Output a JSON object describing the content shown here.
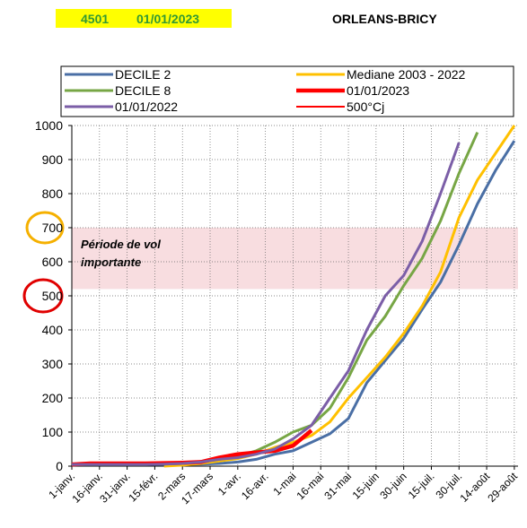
{
  "chart_data": {
    "type": "line",
    "header_code": "4501",
    "header_date": "01/01/2023",
    "header_station": "ORLEANS-BRICY",
    "annotation": [
      "Période de vol",
      "importante"
    ],
    "band": [
      520,
      700
    ],
    "band_color": "#f8dde0",
    "x": [
      0,
      10,
      20,
      30,
      40,
      50,
      60,
      70,
      80,
      90,
      100,
      110,
      120,
      130,
      140,
      150,
      160,
      170,
      180,
      190,
      200,
      210,
      220,
      230,
      240
    ],
    "xlim": [
      0,
      242
    ],
    "xticks": [
      {
        "value": 0,
        "label": "1-janv."
      },
      {
        "value": 15,
        "label": "16-janv."
      },
      {
        "value": 30,
        "label": "31-janv."
      },
      {
        "value": 45,
        "label": "15-févr."
      },
      {
        "value": 60,
        "label": "2-mars"
      },
      {
        "value": 75,
        "label": "17-mars"
      },
      {
        "value": 90,
        "label": "1-avr."
      },
      {
        "value": 105,
        "label": "16-avr."
      },
      {
        "value": 120,
        "label": "1-mai"
      },
      {
        "value": 135,
        "label": "16-mai"
      },
      {
        "value": 150,
        "label": "31-mai"
      },
      {
        "value": 165,
        "label": "15-juin"
      },
      {
        "value": 180,
        "label": "30-juin"
      },
      {
        "value": 195,
        "label": "15-juil."
      },
      {
        "value": 210,
        "label": "30-juil."
      },
      {
        "value": 225,
        "label": "14-août"
      },
      {
        "value": 240,
        "label": "29-août"
      }
    ],
    "ylim": [
      0,
      1000
    ],
    "yticks": [
      0,
      100,
      200,
      300,
      400,
      500,
      600,
      700,
      800,
      900,
      1000
    ],
    "grid": true,
    "series": [
      {
        "name": "DECILE 2",
        "color": "#4a6fa5",
        "width": 3,
        "values": [
          5,
          5,
          5,
          5,
          5,
          5,
          5,
          6,
          8,
          12,
          20,
          35,
          45,
          70,
          95,
          140,
          245,
          310,
          375,
          460,
          540,
          650,
          770,
          870,
          955
        ]
      },
      {
        "name": "Mediane 2003 - 2022",
        "color": "#ffc000",
        "width": 3,
        "values": [
          null,
          null,
          null,
          null,
          null,
          0,
          3,
          8,
          15,
          22,
          35,
          55,
          70,
          90,
          130,
          200,
          260,
          320,
          390,
          470,
          570,
          730,
          840,
          920,
          1000
        ]
      },
      {
        "name": "DECILE 8",
        "color": "#77a645",
        "width": 3,
        "values": [
          5,
          5,
          5,
          5,
          5,
          6,
          8,
          12,
          20,
          30,
          45,
          70,
          100,
          120,
          170,
          260,
          370,
          440,
          530,
          610,
          720,
          860,
          980,
          null,
          null
        ]
      },
      {
        "name": "01/01/2023",
        "color": "#ff0000",
        "width": 4.5,
        "values": [
          5,
          8,
          8,
          8,
          8,
          9,
          10,
          12,
          25,
          35,
          40,
          45,
          60,
          105,
          null,
          null,
          null,
          null,
          null,
          null,
          null,
          null,
          null,
          null,
          null
        ]
      },
      {
        "name": "01/01/2022",
        "color": "#7b5ea7",
        "width": 3,
        "values": [
          5,
          5,
          5,
          5,
          5,
          6,
          8,
          12,
          20,
          25,
          35,
          50,
          80,
          120,
          200,
          280,
          400,
          500,
          560,
          660,
          800,
          950,
          null,
          null,
          null
        ]
      },
      {
        "name": "500°Cj",
        "color": "#ff0000",
        "width": 2,
        "values": [
          null,
          null,
          null,
          null,
          null,
          null,
          null,
          null,
          null,
          null,
          null,
          null,
          null,
          null,
          null,
          null,
          null,
          null,
          null,
          null,
          null,
          null,
          null,
          null,
          null
        ]
      }
    ]
  }
}
